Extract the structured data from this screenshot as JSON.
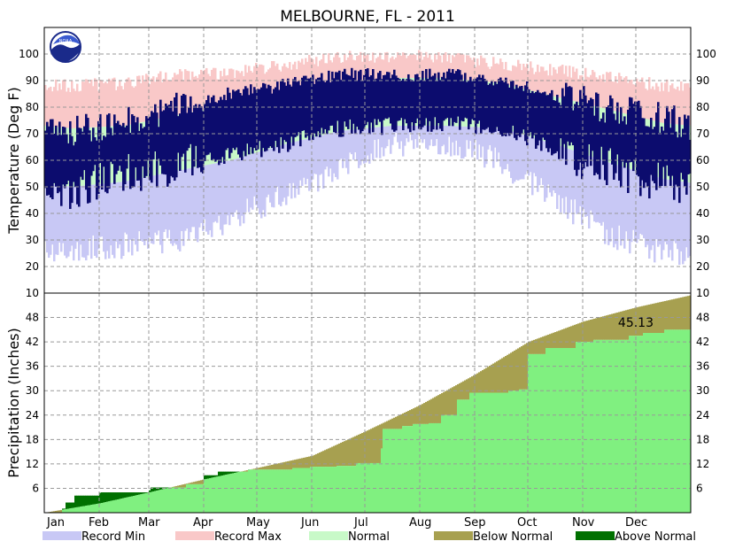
{
  "colors": {
    "record_min": "#c8c8f5",
    "record_max": "#f9c8c8",
    "normal": "#c8f9c8",
    "observed": "#0c0c6e",
    "below_normal": "#a7a050",
    "above_normal": "#007000",
    "observed_precip": "#80f080"
  },
  "chart_data": {
    "type": "area",
    "title": "MELBOURNE, FL - 2011",
    "x_months": [
      "Jan",
      "Feb",
      "Mar",
      "Apr",
      "May",
      "Jun",
      "Jul",
      "Aug",
      "Sep",
      "Oct",
      "Nov",
      "Dec"
    ],
    "temperature": {
      "ylabel": "Temperature (Deg F)",
      "ylim": [
        10,
        110
      ],
      "yticks": [
        20,
        30,
        40,
        50,
        60,
        70,
        80,
        90,
        100
      ],
      "monthly_approx": {
        "record_max": [
          88,
          89,
          92,
          93,
          96,
          99,
          99,
          99,
          96,
          94,
          91,
          88
        ],
        "normal_high": [
          72,
          73,
          77,
          81,
          86,
          89,
          91,
          91,
          89,
          84,
          79,
          74
        ],
        "normal_low": [
          50,
          52,
          56,
          60,
          66,
          71,
          73,
          73,
          72,
          66,
          59,
          53
        ],
        "record_min": [
          26,
          28,
          30,
          38,
          47,
          57,
          66,
          67,
          59,
          45,
          32,
          25
        ],
        "observed_high": [
          70,
          74,
          80,
          85,
          88,
          92,
          92,
          92,
          90,
          84,
          79,
          75
        ],
        "observed_low": [
          47,
          55,
          58,
          62,
          66,
          72,
          73,
          74,
          72,
          64,
          57,
          52
        ]
      }
    },
    "precipitation": {
      "ylabel": "Precipitation (Inches)",
      "ylim": [
        0,
        54
      ],
      "yticks": [
        6,
        12,
        18,
        24,
        30,
        36,
        42,
        48
      ],
      "total_label": "45.13",
      "normal_cumulative": {
        "day": [
          0,
          31,
          59,
          90,
          120,
          151,
          181,
          212,
          243,
          273,
          304,
          334,
          365
        ],
        "value": [
          0,
          2.3,
          5.0,
          8.2,
          11.0,
          14.0,
          20.0,
          26.5,
          34.0,
          42.0,
          47.0,
          50.5,
          53.5
        ]
      },
      "observed_cumulative": {
        "day": [
          0,
          10,
          12,
          17,
          31,
          32,
          59,
          60,
          80,
          90,
          98,
          115,
          140,
          150,
          165,
          176,
          190,
          191,
          202,
          208,
          217,
          224,
          233,
          240,
          262,
          268,
          273,
          283,
          300,
          310,
          330,
          338,
          350,
          365
        ],
        "value": [
          0,
          1.0,
          2.5,
          4.2,
          4.9,
          5.0,
          5.5,
          6.2,
          7.0,
          9.2,
          10.1,
          10.6,
          11.0,
          11.3,
          11.5,
          12.2,
          15.8,
          20.6,
          21.3,
          21.8,
          22.0,
          24.0,
          27.8,
          29.5,
          30.0,
          30.3,
          39.0,
          40.5,
          42.0,
          42.5,
          43.5,
          44.2,
          45.0,
          45.13
        ]
      }
    },
    "legend": [
      {
        "label": "Record Min",
        "color_key": "record_min"
      },
      {
        "label": "Record Max",
        "color_key": "record_max"
      },
      {
        "label": "Normal",
        "color_key": "normal"
      },
      {
        "label": "Below Normal",
        "color_key": "below_normal"
      },
      {
        "label": "Above Normal",
        "color_key": "above_normal"
      }
    ]
  }
}
